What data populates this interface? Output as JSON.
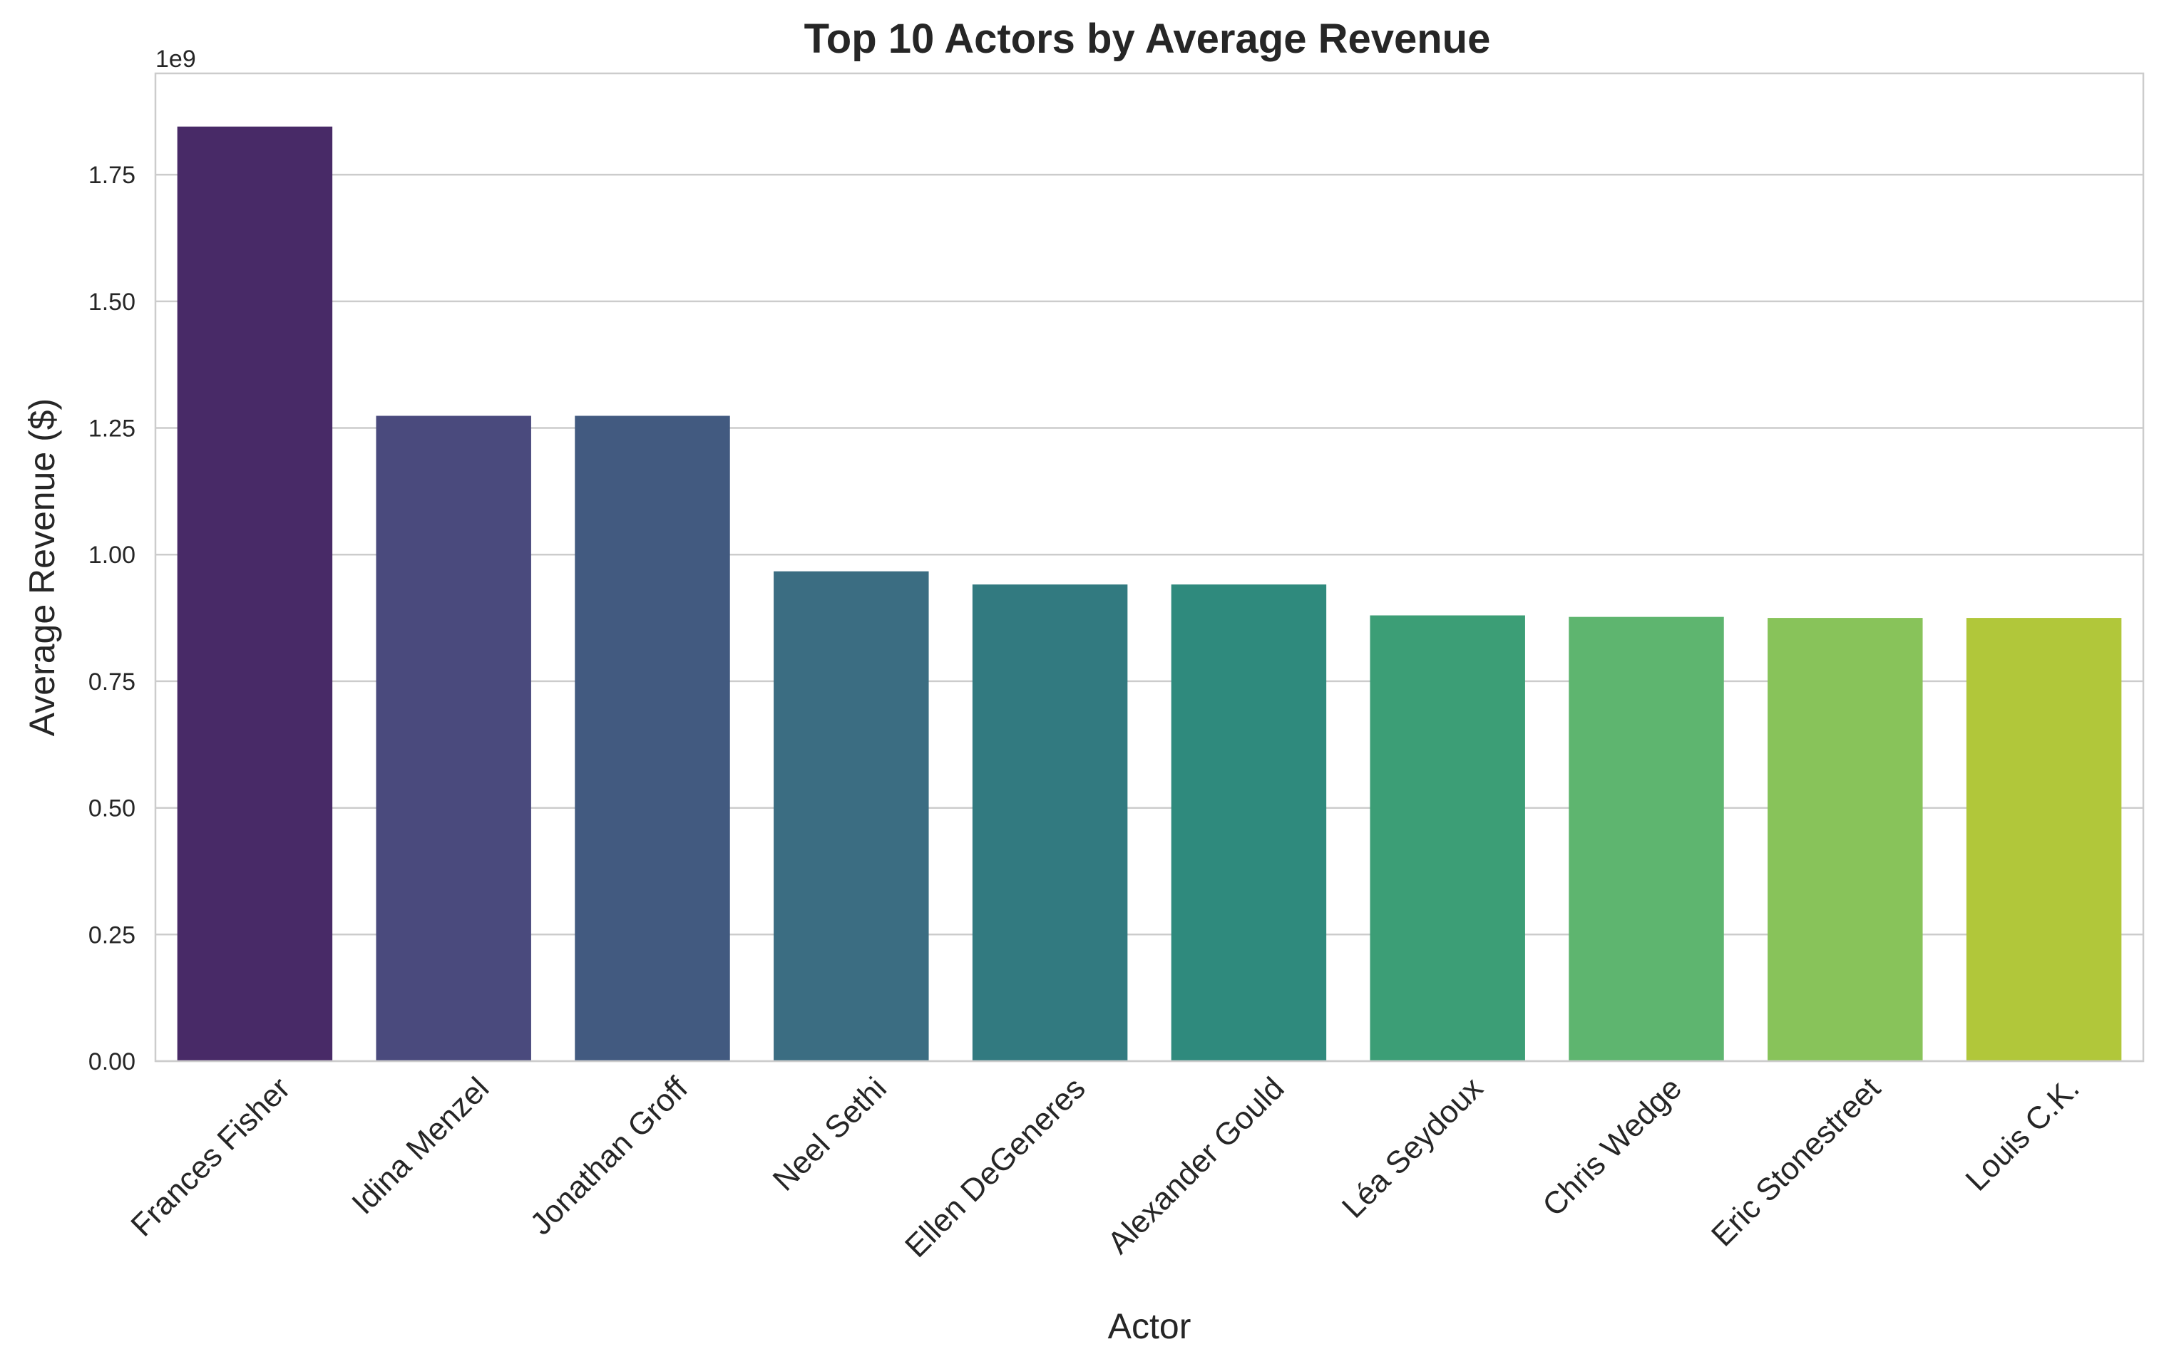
{
  "chart_data": {
    "type": "bar",
    "title": "Top 10 Actors by Average Revenue",
    "xlabel": "Actor",
    "ylabel": "Average Revenue ($)",
    "y_offset_label": "1e9",
    "y_scale": 1000000000,
    "ylim": [
      0,
      1.95
    ],
    "yticks": [
      0.0,
      0.25,
      0.5,
      0.75,
      1.0,
      1.25,
      1.5,
      1.75
    ],
    "ytick_labels": [
      "0.00",
      "0.25",
      "0.50",
      "0.75",
      "1.00",
      "1.25",
      "1.50",
      "1.75"
    ],
    "grid": "horizontal",
    "categories": [
      "Frances Fisher",
      "Idina Menzel",
      "Jonathan Groff",
      "Neel Sethi",
      "Ellen DeGeneres",
      "Alexander Gould",
      "Léa Seydoux",
      "Chris Wedge",
      "Eric Stonestreet",
      "Louis C.K."
    ],
    "values": [
      1.845,
      1.274,
      1.274,
      0.967,
      0.941,
      0.941,
      0.88,
      0.877,
      0.875,
      0.875
    ],
    "colors": [
      "#482a67",
      "#4a4a7d",
      "#425a80",
      "#3b6d82",
      "#327a80",
      "#2f8a7d",
      "#3c9e76",
      "#5eb56f",
      "#88c35a",
      "#b1c73a"
    ]
  }
}
